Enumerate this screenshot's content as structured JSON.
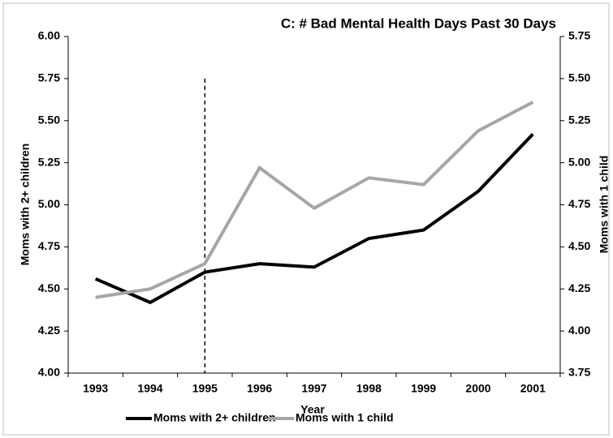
{
  "chart_data": {
    "type": "line",
    "title": "C: # Bad Mental Health Days Past 30 Days",
    "x_label": "Year",
    "y_label": "Moms with 2+ children",
    "y2_label": "Moms with 1 child",
    "categories": [
      "1993",
      "1994",
      "1995",
      "1996",
      "1997",
      "1998",
      "1999",
      "2000",
      "2001"
    ],
    "series": [
      {
        "name": "Moms with 2+ children",
        "color": "#000000",
        "values": [
          4.56,
          4.42,
          4.6,
          4.65,
          4.63,
          4.8,
          4.85,
          5.08,
          5.42
        ]
      },
      {
        "name": "Moms with 1 child",
        "color": "#a6a6a6",
        "axis": "y2",
        "values": [
          4.2,
          4.25,
          4.4,
          4.97,
          4.73,
          4.91,
          4.87,
          5.19,
          5.36
        ]
      }
    ],
    "ylim": [
      4.0,
      6.0
    ],
    "yticks": [
      {
        "value": 4,
        "label": "4.00"
      },
      {
        "value": 4.25,
        "label": "4.25"
      },
      {
        "value": 4.5,
        "label": "4.50"
      },
      {
        "value": 4.75,
        "label": "4.75"
      },
      {
        "value": 5,
        "label": "5.00"
      },
      {
        "value": 5.25,
        "label": "5.25"
      },
      {
        "value": 5.5,
        "label": "5.50"
      },
      {
        "value": 5.75,
        "label": "5.75"
      },
      {
        "value": 6,
        "label": "6.00"
      }
    ],
    "y2lim": [
      3.75,
      5.75
    ],
    "y2ticks": [
      {
        "value": 3.75,
        "label": "3.75"
      },
      {
        "value": 4,
        "label": "4.00"
      },
      {
        "value": 4.25,
        "label": "4.25"
      },
      {
        "value": 4.5,
        "label": "4.50"
      },
      {
        "value": 4.75,
        "label": "4.75"
      },
      {
        "value": 5,
        "label": "5.00"
      },
      {
        "value": 5.25,
        "label": "5.25"
      },
      {
        "value": 5.5,
        "label": "5.50"
      },
      {
        "value": 5.75,
        "label": "5.75"
      }
    ],
    "vertical_line_at": "1995",
    "legend": "bottom"
  }
}
